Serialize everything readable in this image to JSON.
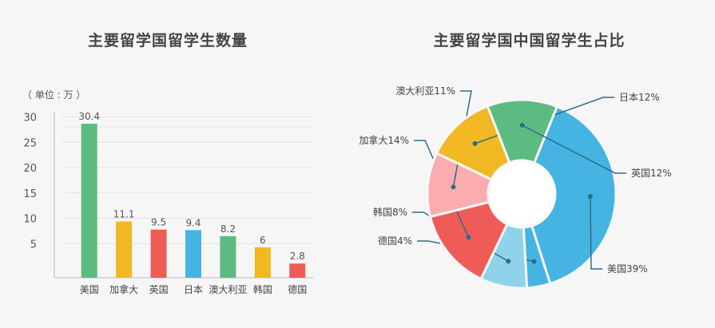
{
  "chart_data": [
    {
      "type": "bar",
      "title": "主要留学国留学生数量",
      "unit_label": "（ 单位 : 万 ）",
      "categories": [
        "美国",
        "加拿大",
        "英国",
        "日本",
        "澳大利亚",
        "韩国",
        "德国"
      ],
      "values": [
        30.4,
        11.1,
        9.5,
        9.4,
        8.2,
        6,
        2.8
      ],
      "value_labels": [
        "30.4",
        "11.1",
        "9.5",
        "9.4",
        "8.2",
        "6",
        "2.8"
      ],
      "colors": [
        "#5dbb82",
        "#f2b824",
        "#ef5b57",
        "#45b4e2",
        "#5dbb82",
        "#f2b824",
        "#ef5b57"
      ],
      "y_ticks": [
        5,
        10,
        15,
        20,
        25,
        30
      ],
      "ylim": [
        0,
        33
      ],
      "grid": true,
      "xlabel": "",
      "ylabel": ""
    },
    {
      "type": "pie",
      "title": "主要留学国中国留学生占比",
      "slices": [
        {
          "label": "美国39%",
          "value": 39,
          "color": "#45b4e2"
        },
        {
          "label": "德国4%",
          "value": 4,
          "color": "#45b4e2"
        },
        {
          "label": "韩国8%",
          "value": 8,
          "color": "#8fd3ea"
        },
        {
          "label": "加拿大14%",
          "value": 14,
          "color": "#ef5b57"
        },
        {
          "label": "澳大利亚11%",
          "value": 11,
          "color": "#fbacae"
        },
        {
          "label": "日本12%",
          "value": 12,
          "color": "#f2b824"
        },
        {
          "label": "英国12%",
          "value": 12,
          "color": "#5dbb82"
        }
      ],
      "donut": true,
      "label_color": "#2d6e86"
    }
  ]
}
